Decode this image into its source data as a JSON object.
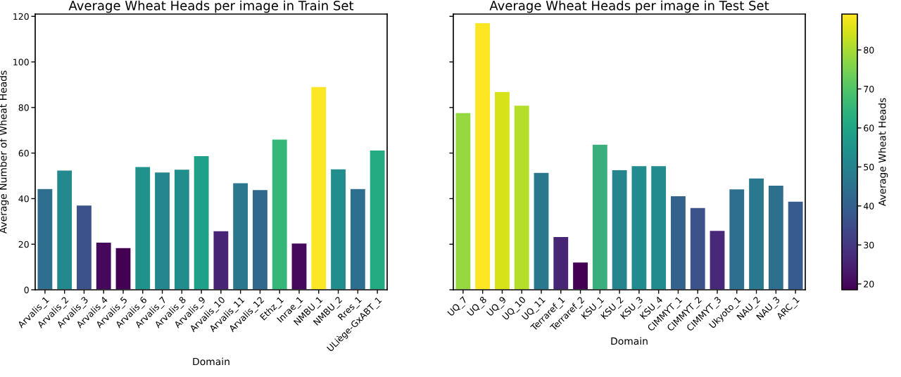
{
  "chart_data": [
    {
      "type": "bar",
      "title": "Average Wheat Heads per image in Train Set",
      "xlabel": "Domain",
      "ylabel": "Average Number of Wheat Heads",
      "categories": [
        "Arvalis_1",
        "Arvalis_2",
        "Arvalis_3",
        "Arvalis_4",
        "Arvalis_5",
        "Arvalis_6",
        "Arvalis_7",
        "Arvalis_8",
        "Arvalis_9",
        "Arvalis_10",
        "Arvalis_11",
        "Arvalis_12",
        "Ethz_1",
        "Inrae_1",
        "NMBU_1",
        "NMBU_2",
        "Rres_1",
        "ULiège-GxABT_1"
      ],
      "values": [
        44.4,
        52.5,
        37.2,
        20.9,
        18.5,
        54.1,
        51.7,
        52.9,
        58.9,
        25.9,
        47.0,
        44.0,
        66.1,
        20.5,
        89.2,
        53.1,
        44.4,
        61.3
      ],
      "colors": [
        "#2e6e8e",
        "#23898e",
        "#3b528b",
        "#46085c",
        "#440154",
        "#21918c",
        "#24868e",
        "#228d8d",
        "#1fa088",
        "#482475",
        "#2a788e",
        "#31688e",
        "#35b779",
        "#46085c",
        "#fde725",
        "#228d8d",
        "#2e6e8e",
        "#25ab82"
      ],
      "ylim": [
        0,
        121
      ],
      "yticks": [
        0,
        20,
        40,
        60,
        80,
        100,
        120
      ],
      "grid": false
    },
    {
      "type": "bar",
      "title": "Average Wheat Heads per image in Test Set",
      "xlabel": "Domain",
      "categories": [
        "UQ_7",
        "UQ_8",
        "UQ_9",
        "UQ_10",
        "UQ_11",
        "Terraref_1",
        "Terraref_2",
        "KSU_1",
        "KSU_2",
        "KSU_3",
        "KSU_4",
        "CIMMYT_1",
        "CIMMYT_2",
        "CIMMYT_3",
        "Ukyoto_1",
        "NAU_2",
        "NAU_3",
        "ARC_1"
      ],
      "values": [
        77.8,
        117.2,
        87.0,
        81.0,
        51.5,
        23.4,
        12.2,
        63.9,
        52.7,
        54.5,
        54.5,
        41.3,
        36.1,
        26.1,
        44.3,
        49.1,
        45.9,
        38.9
      ],
      "colors": [
        "#95d840",
        "#fde725",
        "#d8e219",
        "#b5de2b",
        "#2a788e",
        "#482475",
        "#440154",
        "#3aae7d",
        "#25848e",
        "#228b8d",
        "#228b8d",
        "#33638d",
        "#3b528b",
        "#482878",
        "#2e6e8e",
        "#2a788e",
        "#2e6f8e",
        "#365c8d"
      ],
      "ylim": [
        0,
        121
      ],
      "yticks": [
        0,
        20,
        40,
        60,
        80,
        100,
        120
      ],
      "tick_labels": "x",
      "grid": false,
      "clabel": "Average Wheat Heads",
      "clim": [
        18.5,
        89.2
      ],
      "cticks": [
        20,
        30,
        40,
        50,
        60,
        70,
        80
      ]
    }
  ]
}
